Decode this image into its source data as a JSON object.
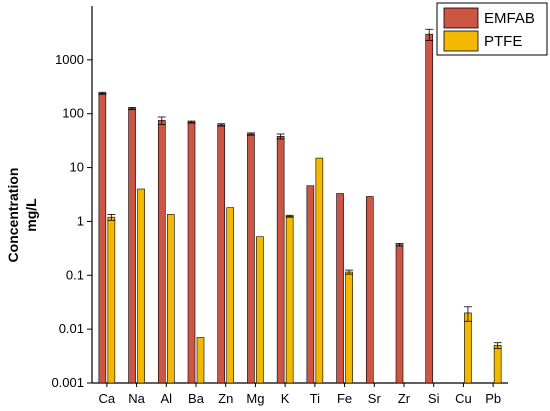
{
  "chart_data": {
    "type": "bar",
    "ylabel_line1": "Concentration",
    "ylabel_line2": "mg/L",
    "yscale": "log",
    "ylim": [
      0.001,
      10000
    ],
    "yticks": [
      "0.001",
      "0.01",
      "0.1",
      "1",
      "10",
      "100",
      "1000"
    ],
    "ytick_values": [
      0.001,
      0.01,
      0.1,
      1,
      10,
      100,
      1000
    ],
    "categories": [
      "Ca",
      "Na",
      "Al",
      "Ba",
      "Zn",
      "Mg",
      "K",
      "Ti",
      "Fe",
      "Sr",
      "Zr",
      "Si",
      "Cu",
      "Pb"
    ],
    "series": [
      {
        "name": "EMFAB",
        "color": "#cc5544",
        "values": [
          240,
          125,
          75,
          70,
          62,
          42,
          38,
          4.6,
          3.3,
          2.9,
          0.37,
          3000,
          null,
          null
        ],
        "errors": [
          10,
          6,
          12,
          3,
          3,
          2,
          4,
          0,
          0,
          0,
          0.02,
          700,
          null,
          null
        ]
      },
      {
        "name": "PTFE",
        "color": "#f5b800",
        "values": [
          1.2,
          4.0,
          1.35,
          0.007,
          1.8,
          0.52,
          1.25,
          15,
          0.115,
          null,
          null,
          null,
          0.02,
          0.005
        ],
        "errors": [
          0.15,
          0,
          0,
          0,
          0,
          0,
          0.05,
          0,
          0.01,
          null,
          null,
          null,
          0.006,
          0.0006
        ]
      }
    ],
    "legend_position": "top-right",
    "grid": false
  }
}
